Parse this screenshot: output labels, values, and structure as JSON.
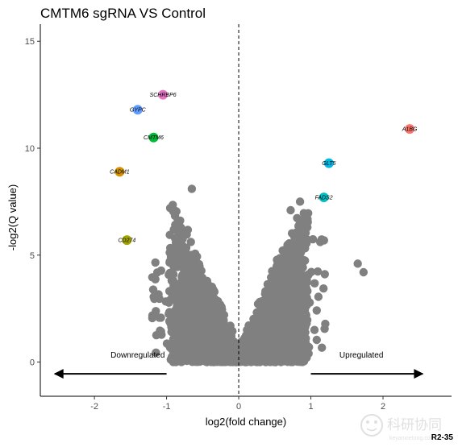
{
  "chart_data": {
    "type": "scatter",
    "title": "CMTM6 sgRNA VS Control",
    "xlabel": "log2(fold change)",
    "ylabel": "-log2(Q value)",
    "xlim": [
      -2.75,
      2.95
    ],
    "ylim": [
      -1.6,
      15.8
    ],
    "xticks": [
      -2,
      -1,
      0,
      1,
      2
    ],
    "yticks": [
      0,
      5,
      10,
      15
    ],
    "vline_x": 0,
    "grid": false,
    "background_color": "#808080",
    "highlighted": [
      {
        "label": "SCHRBP6",
        "x": -1.05,
        "y": 12.5,
        "color": "#e377c2"
      },
      {
        "label": "GYPC",
        "x": -1.4,
        "y": 11.8,
        "color": "#619cff"
      },
      {
        "label": "CMTM6",
        "x": -1.18,
        "y": 10.5,
        "color": "#00ba38"
      },
      {
        "label": "CADM1",
        "x": -1.65,
        "y": 8.9,
        "color": "#d39200"
      },
      {
        "label": "CD274",
        "x": -1.55,
        "y": 5.7,
        "color": "#a3a500"
      },
      {
        "label": "A1BG",
        "x": 2.37,
        "y": 10.9,
        "color": "#f8766d"
      },
      {
        "label": "GLT5",
        "x": 1.25,
        "y": 9.3,
        "color": "#00b9e3"
      },
      {
        "label": "FADS2",
        "x": 1.18,
        "y": 7.7,
        "color": "#00bfc4"
      }
    ],
    "annotations": {
      "down_label": "Downregulated",
      "up_label": "Upregulated",
      "down_arrow": {
        "x_from": -1.0,
        "x_to": -2.55,
        "y": -0.55
      },
      "up_arrow": {
        "x_from": 1.0,
        "x_to": 2.55,
        "y": -0.55
      }
    }
  },
  "watermark": {
    "main": "科研协同",
    "sub": "keyanxietong.com"
  },
  "corner_text": "R2-35"
}
